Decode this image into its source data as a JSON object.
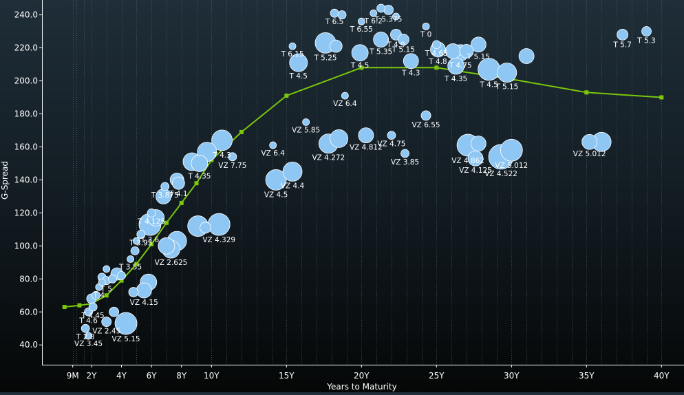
{
  "chart_data": {
    "type": "scatter",
    "subtype": "bubble with fitted curve",
    "xlabel": "Years to Maturity",
    "ylabel": "G-Spread",
    "x_ticks": [
      {
        "v": 0.75,
        "label": "9M"
      },
      {
        "v": 2,
        "label": "2Y"
      },
      {
        "v": 4,
        "label": "4Y"
      },
      {
        "v": 6,
        "label": "6Y"
      },
      {
        "v": 8,
        "label": "8Y"
      },
      {
        "v": 10,
        "label": "10Y"
      },
      {
        "v": 15,
        "label": "15Y"
      },
      {
        "v": 20,
        "label": "20Y"
      },
      {
        "v": 25,
        "label": "25Y"
      },
      {
        "v": 30,
        "label": "30Y"
      },
      {
        "v": 35,
        "label": "35Y"
      },
      {
        "v": 40,
        "label": "40Y"
      }
    ],
    "y_ticks": [
      {
        "v": 40,
        "label": "40.0"
      },
      {
        "v": 60,
        "label": "60.0"
      },
      {
        "v": 80,
        "label": "80.0"
      },
      {
        "v": 100,
        "label": "100.0"
      },
      {
        "v": 120,
        "label": "120.0"
      },
      {
        "v": 140,
        "label": "140.0"
      },
      {
        "v": 160,
        "label": "160.0"
      },
      {
        "v": 180,
        "label": "180.0"
      },
      {
        "v": 200,
        "label": "200.0"
      },
      {
        "v": 220,
        "label": "220.0"
      },
      {
        "v": 240,
        "label": "240.0"
      }
    ],
    "xlim": [
      -1.3,
      41.5
    ],
    "ylim": [
      28,
      249
    ],
    "grid": "vertical dotted",
    "colors": {
      "bubble": "#8ec6f4",
      "bubble_edge": "#ffffff",
      "curve": "#7ac70c",
      "axis": "#ffffff"
    },
    "curve": [
      [
        0.2,
        63
      ],
      [
        1.2,
        64
      ],
      [
        2,
        65
      ],
      [
        3,
        70
      ],
      [
        4,
        79
      ],
      [
        5,
        89
      ],
      [
        6,
        101
      ],
      [
        7,
        114
      ],
      [
        8,
        126
      ],
      [
        9,
        138
      ],
      [
        10,
        152
      ],
      [
        12,
        169
      ],
      [
        15,
        191
      ],
      [
        20,
        208
      ],
      [
        25,
        208
      ],
      [
        30,
        201
      ],
      [
        35,
        193
      ],
      [
        40,
        190
      ]
    ],
    "bubbles": [
      {
        "x": 1.6,
        "y": 50,
        "s": 6,
        "label": "T 2.8"
      },
      {
        "x": 1.8,
        "y": 45.5,
        "s": 5,
        "label": "VZ 3.45"
      },
      {
        "x": 1.8,
        "y": 60,
        "s": 6,
        "label": "T 4.6"
      },
      {
        "x": 2.1,
        "y": 63,
        "s": 6,
        "label": "T 4.45"
      },
      {
        "x": 2.0,
        "y": 68,
        "s": 7,
        "label": ""
      },
      {
        "x": 2.3,
        "y": 70,
        "s": 6,
        "label": ""
      },
      {
        "x": 2.5,
        "y": 75,
        "s": 5,
        "label": "T 4"
      },
      {
        "x": 2.7,
        "y": 78,
        "s": 5,
        "label": ""
      },
      {
        "x": 2.7,
        "y": 81,
        "s": 6,
        "label": ""
      },
      {
        "x": 3.0,
        "y": 79,
        "s": 6,
        "label": "T 5"
      },
      {
        "x": 3.0,
        "y": 86,
        "s": 5,
        "label": ""
      },
      {
        "x": 3.4,
        "y": 80,
        "s": 6,
        "label": ""
      },
      {
        "x": 3.7,
        "y": 83,
        "s": 9,
        "label": ""
      },
      {
        "x": 4.0,
        "y": 82,
        "s": 6,
        "label": ""
      },
      {
        "x": 3.0,
        "y": 54,
        "s": 7,
        "label": "VZ 2.45"
      },
      {
        "x": 3.5,
        "y": 60,
        "s": 7,
        "label": ""
      },
      {
        "x": 4.3,
        "y": 53,
        "s": 16,
        "label": "VZ 5.15"
      },
      {
        "x": 4.8,
        "y": 72,
        "s": 7,
        "label": ""
      },
      {
        "x": 5.5,
        "y": 73,
        "s": 11,
        "label": "VZ 4.15"
      },
      {
        "x": 5.8,
        "y": 78,
        "s": 12,
        "label": ""
      },
      {
        "x": 4.6,
        "y": 92,
        "s": 5,
        "label": "T 3.55"
      },
      {
        "x": 4.9,
        "y": 97,
        "s": 6,
        "label": ""
      },
      {
        "x": 5.0,
        "y": 103,
        "s": 5,
        "label": ""
      },
      {
        "x": 5.3,
        "y": 107,
        "s": 6,
        "label": "T 3.95"
      },
      {
        "x": 5.9,
        "y": 113,
        "s": 16,
        "label": "T 3.6"
      },
      {
        "x": 6.3,
        "y": 117,
        "s": 12,
        "label": ""
      },
      {
        "x": 6.0,
        "y": 120,
        "s": 6,
        "label": "T 4.125"
      },
      {
        "x": 6.8,
        "y": 130,
        "s": 11,
        "label": ""
      },
      {
        "x": 6.9,
        "y": 136,
        "s": 6,
        "label": "T 3.875"
      },
      {
        "x": 7.0,
        "y": 100,
        "s": 12,
        "label": ""
      },
      {
        "x": 7.3,
        "y": 98,
        "s": 13,
        "label": "VZ 2.625"
      },
      {
        "x": 7.7,
        "y": 103,
        "s": 14,
        "label": ""
      },
      {
        "x": 7.7,
        "y": 140,
        "s": 10,
        "label": ""
      },
      {
        "x": 7.8,
        "y": 138,
        "s": 9,
        "label": "T 4.1"
      },
      {
        "x": 8.7,
        "y": 151,
        "s": 13,
        "label": ""
      },
      {
        "x": 9.2,
        "y": 150,
        "s": 12,
        "label": "T 4.35"
      },
      {
        "x": 9.7,
        "y": 157,
        "s": 14,
        "label": ""
      },
      {
        "x": 10.7,
        "y": 164,
        "s": 15,
        "label": "T 4.3"
      },
      {
        "x": 11.4,
        "y": 154,
        "s": 6,
        "label": "VZ 7.75"
      },
      {
        "x": 9.1,
        "y": 112,
        "s": 15,
        "label": ""
      },
      {
        "x": 9.6,
        "y": 111,
        "s": 8,
        "label": ""
      },
      {
        "x": 10.5,
        "y": 113,
        "s": 16,
        "label": "VZ 4.329"
      },
      {
        "x": 14.3,
        "y": 140,
        "s": 15,
        "label": "VZ 4.5"
      },
      {
        "x": 15.4,
        "y": 145,
        "s": 14,
        "label": "VZ 4.4"
      },
      {
        "x": 14.1,
        "y": 161,
        "s": 5,
        "label": "VZ 6.4"
      },
      {
        "x": 16.3,
        "y": 175,
        "s": 5,
        "label": "VZ 5.85"
      },
      {
        "x": 17.8,
        "y": 162,
        "s": 14,
        "label": "VZ 4.272"
      },
      {
        "x": 18.5,
        "y": 165,
        "s": 13,
        "label": ""
      },
      {
        "x": 18.9,
        "y": 191,
        "s": 5,
        "label": "VZ 6.4"
      },
      {
        "x": 20.3,
        "y": 167,
        "s": 11,
        "label": "VZ 4.812"
      },
      {
        "x": 15.4,
        "y": 221,
        "s": 5,
        "label": "T 6.15"
      },
      {
        "x": 15.8,
        "y": 211,
        "s": 13,
        "label": "T 4.5"
      },
      {
        "x": 17.6,
        "y": 223,
        "s": 15,
        "label": "T 5.25"
      },
      {
        "x": 18.3,
        "y": 221,
        "s": 9,
        "label": ""
      },
      {
        "x": 18.2,
        "y": 241,
        "s": 6,
        "label": "T 6.5"
      },
      {
        "x": 18.7,
        "y": 240,
        "s": 6,
        "label": ""
      },
      {
        "x": 19.9,
        "y": 217,
        "s": 12,
        "label": "T 4.5"
      },
      {
        "x": 20.0,
        "y": 236,
        "s": 5,
        "label": "T 6.55"
      },
      {
        "x": 20.8,
        "y": 241,
        "s": 5,
        "label": "T 6.2"
      },
      {
        "x": 21.3,
        "y": 244,
        "s": 6,
        "label": ""
      },
      {
        "x": 21.8,
        "y": 243,
        "s": 7,
        "label": "T 5.375"
      },
      {
        "x": 22.3,
        "y": 239,
        "s": 5,
        "label": ""
      },
      {
        "x": 21.3,
        "y": 225,
        "s": 11,
        "label": "T 5.35"
      },
      {
        "x": 22.3,
        "y": 228,
        "s": 8,
        "label": "T 4.9"
      },
      {
        "x": 22.8,
        "y": 225,
        "s": 8,
        "label": "T 5.15"
      },
      {
        "x": 23.3,
        "y": 212,
        "s": 11,
        "label": "T 4.3"
      },
      {
        "x": 22.0,
        "y": 167,
        "s": 6,
        "label": "VZ 4.75"
      },
      {
        "x": 22.9,
        "y": 156,
        "s": 6,
        "label": "VZ 3.85"
      },
      {
        "x": 24.3,
        "y": 179,
        "s": 7,
        "label": "VZ 6.55"
      },
      {
        "x": 24.3,
        "y": 233,
        "s": 5,
        "label": "T 0"
      },
      {
        "x": 25.0,
        "y": 222,
        "s": 6,
        "label": "T 4.65"
      },
      {
        "x": 25.1,
        "y": 219,
        "s": 11,
        "label": "T 4.8"
      },
      {
        "x": 26.1,
        "y": 218,
        "s": 11,
        "label": ""
      },
      {
        "x": 26.6,
        "y": 217,
        "s": 12,
        "label": "T 4.75"
      },
      {
        "x": 27.0,
        "y": 218,
        "s": 10,
        "label": ""
      },
      {
        "x": 27.8,
        "y": 222,
        "s": 11,
        "label": "T 5.15"
      },
      {
        "x": 26.3,
        "y": 209,
        "s": 12,
        "label": "T 4.35"
      },
      {
        "x": 28.5,
        "y": 207,
        "s": 16,
        "label": "T 4.5"
      },
      {
        "x": 29.7,
        "y": 205,
        "s": 14,
        "label": "T 5.15"
      },
      {
        "x": 31.0,
        "y": 215,
        "s": 11,
        "label": ""
      },
      {
        "x": 27.1,
        "y": 161,
        "s": 16,
        "label": "VZ 4.862"
      },
      {
        "x": 27.6,
        "y": 153,
        "s": 11,
        "label": "VZ 4.125"
      },
      {
        "x": 27.8,
        "y": 162,
        "s": 11,
        "label": ""
      },
      {
        "x": 29.3,
        "y": 154,
        "s": 18,
        "label": "VZ 4.522"
      },
      {
        "x": 30.0,
        "y": 158,
        "s": 16,
        "label": "VZ 5.012"
      },
      {
        "x": 35.2,
        "y": 163,
        "s": 11,
        "label": "VZ 5.012"
      },
      {
        "x": 36.0,
        "y": 163,
        "s": 14,
        "label": ""
      },
      {
        "x": 37.4,
        "y": 228,
        "s": 8,
        "label": "T 5.7"
      },
      {
        "x": 39.0,
        "y": 230,
        "s": 7,
        "label": "T 5.3"
      }
    ]
  }
}
